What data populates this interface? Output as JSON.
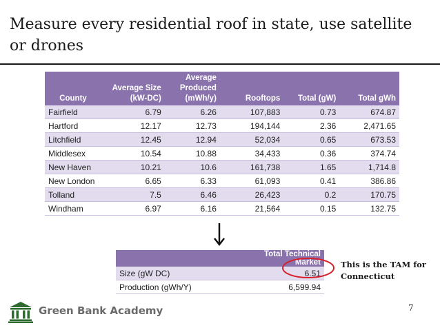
{
  "slide": {
    "title": "Measure every residential roof in state, use satellite or drones",
    "page_number": "7",
    "note": "This is the TAM for Connecticut",
    "brand": "Green Bank Academy"
  },
  "county_table": {
    "headers": [
      "County",
      "Average Size (kW-DC)",
      "Average Produced (mWh/y)",
      "Rooftops",
      "Total (gW)",
      "Total gWh"
    ],
    "rows": [
      [
        "Fairfield",
        "6.79",
        "6.26",
        "107,883",
        "0.73",
        "674.87"
      ],
      [
        "Hartford",
        "12.17",
        "12.73",
        "194,144",
        "2.36",
        "2,471.65"
      ],
      [
        "Litchfield",
        "12.45",
        "12.94",
        "52,034",
        "0.65",
        "673.53"
      ],
      [
        "Middlesex",
        "10.54",
        "10.88",
        "34,433",
        "0.36",
        "374.74"
      ],
      [
        "New Haven",
        "10.21",
        "10.6",
        "161,738",
        "1.65",
        "1,714.8"
      ],
      [
        "New London",
        "6.65",
        "6.33",
        "61,093",
        "0.41",
        "386.86"
      ],
      [
        "Tolland",
        "7.5",
        "6.46",
        "26,423",
        "0.2",
        "170.75"
      ],
      [
        "Windham",
        "6.97",
        "6.16",
        "21,564",
        "0.15",
        "132.75"
      ]
    ]
  },
  "tam_table": {
    "header": "Total Technical Market",
    "rows": [
      [
        "Size (gW DC)",
        "6.51"
      ],
      [
        "Production (gWh/Y)",
        "6,599.94"
      ]
    ]
  },
  "colors": {
    "header_purple": "#8a73ad",
    "band_lavender": "#e2dcee",
    "highlight_red": "#d6202a",
    "brand_green": "#2e6b2f"
  },
  "icons": [
    "down-arrow-icon",
    "bank-building-icon"
  ]
}
